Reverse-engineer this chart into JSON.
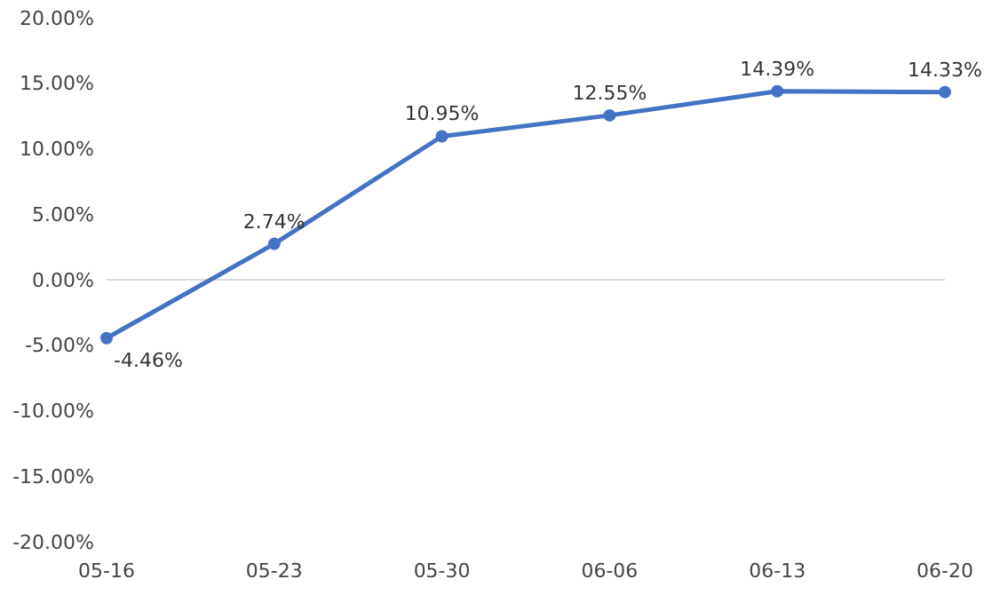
{
  "chart_data": {
    "type": "line",
    "categories": [
      "05-16",
      "05-23",
      "05-30",
      "06-06",
      "06-13",
      "06-20"
    ],
    "series": [
      {
        "color": "#4472c4",
        "values": [
          -4.46,
          2.74,
          10.95,
          12.55,
          14.39,
          14.33
        ],
        "value_labels": [
          "-4.46%",
          "2.74%",
          "10.95%",
          "12.55%",
          "14.39%",
          "14.33%"
        ]
      }
    ],
    "ylim": [
      -20,
      20
    ],
    "yticks": [
      {
        "value": -20,
        "label": "-20.00%"
      },
      {
        "value": -15,
        "label": "-15.00%"
      },
      {
        "value": -10,
        "label": "-10.00%"
      },
      {
        "value": -5,
        "label": "-5.00%"
      },
      {
        "value": 0,
        "label": "0.00%"
      },
      {
        "value": 5,
        "label": "5.00%"
      },
      {
        "value": 10,
        "label": "10.00%"
      },
      {
        "value": 15,
        "label": "15.00%"
      },
      {
        "value": 20,
        "label": "20.00%"
      }
    ],
    "marker": "circle",
    "line_style": "solid"
  }
}
